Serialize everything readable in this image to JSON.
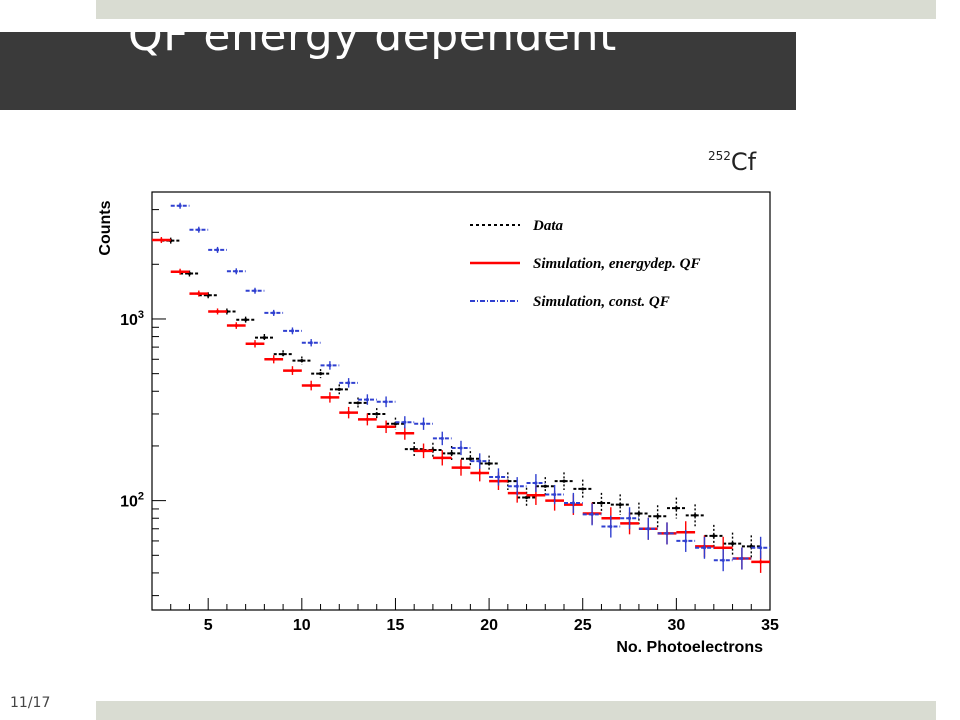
{
  "slide": {
    "title": "QF energy dependent",
    "page_number": "11/17",
    "isotope_mass": "252",
    "isotope_element": "Cf"
  },
  "chart_data": {
    "type": "scatter",
    "title": "",
    "xlabel": "No. Photoelectrons",
    "ylabel": "Counts",
    "xlim": [
      2,
      35
    ],
    "ylim": [
      25,
      5000
    ],
    "y_scale": "log",
    "x_ticks": [
      5,
      10,
      15,
      20,
      25,
      30,
      35
    ],
    "y_tick_labels": [
      {
        "value": 100,
        "base": "10",
        "exp": "2"
      },
      {
        "value": 1000,
        "base": "10",
        "exp": "3"
      }
    ],
    "grid": false,
    "legend_position": "top-right",
    "series": [
      {
        "name": "Data",
        "style": "dashed",
        "color": "#000000",
        "x": [
          3,
          4,
          5,
          6,
          7,
          8,
          9,
          10,
          11,
          12,
          13,
          14,
          15,
          16,
          17,
          18,
          19,
          20,
          21,
          22,
          23,
          24,
          25,
          26,
          27,
          28,
          29,
          30,
          31,
          32,
          33,
          34
        ],
        "y": [
          2700,
          1780,
          1350,
          1100,
          990,
          790,
          640,
          590,
          500,
          410,
          345,
          300,
          265,
          192,
          190,
          182,
          170,
          160,
          128,
          104,
          120,
          128,
          116,
          97,
          95,
          85,
          82,
          91,
          83,
          64,
          58,
          56
        ]
      },
      {
        "name": "Simulation, energydep. QF",
        "style": "solid",
        "color": "#ff0000",
        "x": [
          2.5,
          3.5,
          4.5,
          5.5,
          6.5,
          7.5,
          8.5,
          9.5,
          10.5,
          11.5,
          12.5,
          13.5,
          14.5,
          15.5,
          16.5,
          17.5,
          18.5,
          19.5,
          20.5,
          21.5,
          22.5,
          23.5,
          24.5,
          25.5,
          26.5,
          27.5,
          28.5,
          29.5,
          30.5,
          31.5,
          32.5,
          33.5,
          34.5
        ],
        "y": [
          2720,
          1820,
          1380,
          1100,
          920,
          730,
          600,
          520,
          430,
          370,
          305,
          280,
          255,
          235,
          188,
          172,
          152,
          142,
          128,
          110,
          107,
          100,
          95,
          85,
          80,
          75,
          70,
          66,
          67,
          56,
          55,
          48,
          46
        ]
      },
      {
        "name": "Simulation, const. QF",
        "style": "dash-dot",
        "color": "#3040d0",
        "x": [
          3.5,
          4.5,
          5.5,
          6.5,
          7.5,
          8.5,
          9.5,
          10.5,
          11.5,
          12.5,
          13.5,
          14.5,
          15.5,
          16.5,
          17.5,
          18.5,
          19.5,
          20.5,
          21.5,
          22.5,
          23.5,
          24.5,
          25.5,
          26.5,
          27.5,
          28.5,
          29.5,
          30.5,
          31.5,
          32.5,
          33.5,
          34.5
        ],
        "y": [
          4200,
          3100,
          2400,
          1830,
          1430,
          1080,
          860,
          740,
          555,
          445,
          360,
          350,
          270,
          265,
          220,
          195,
          165,
          135,
          120,
          125,
          108,
          97,
          84,
          72,
          80,
          70,
          66,
          60,
          55,
          47,
          48,
          55
        ]
      }
    ]
  }
}
